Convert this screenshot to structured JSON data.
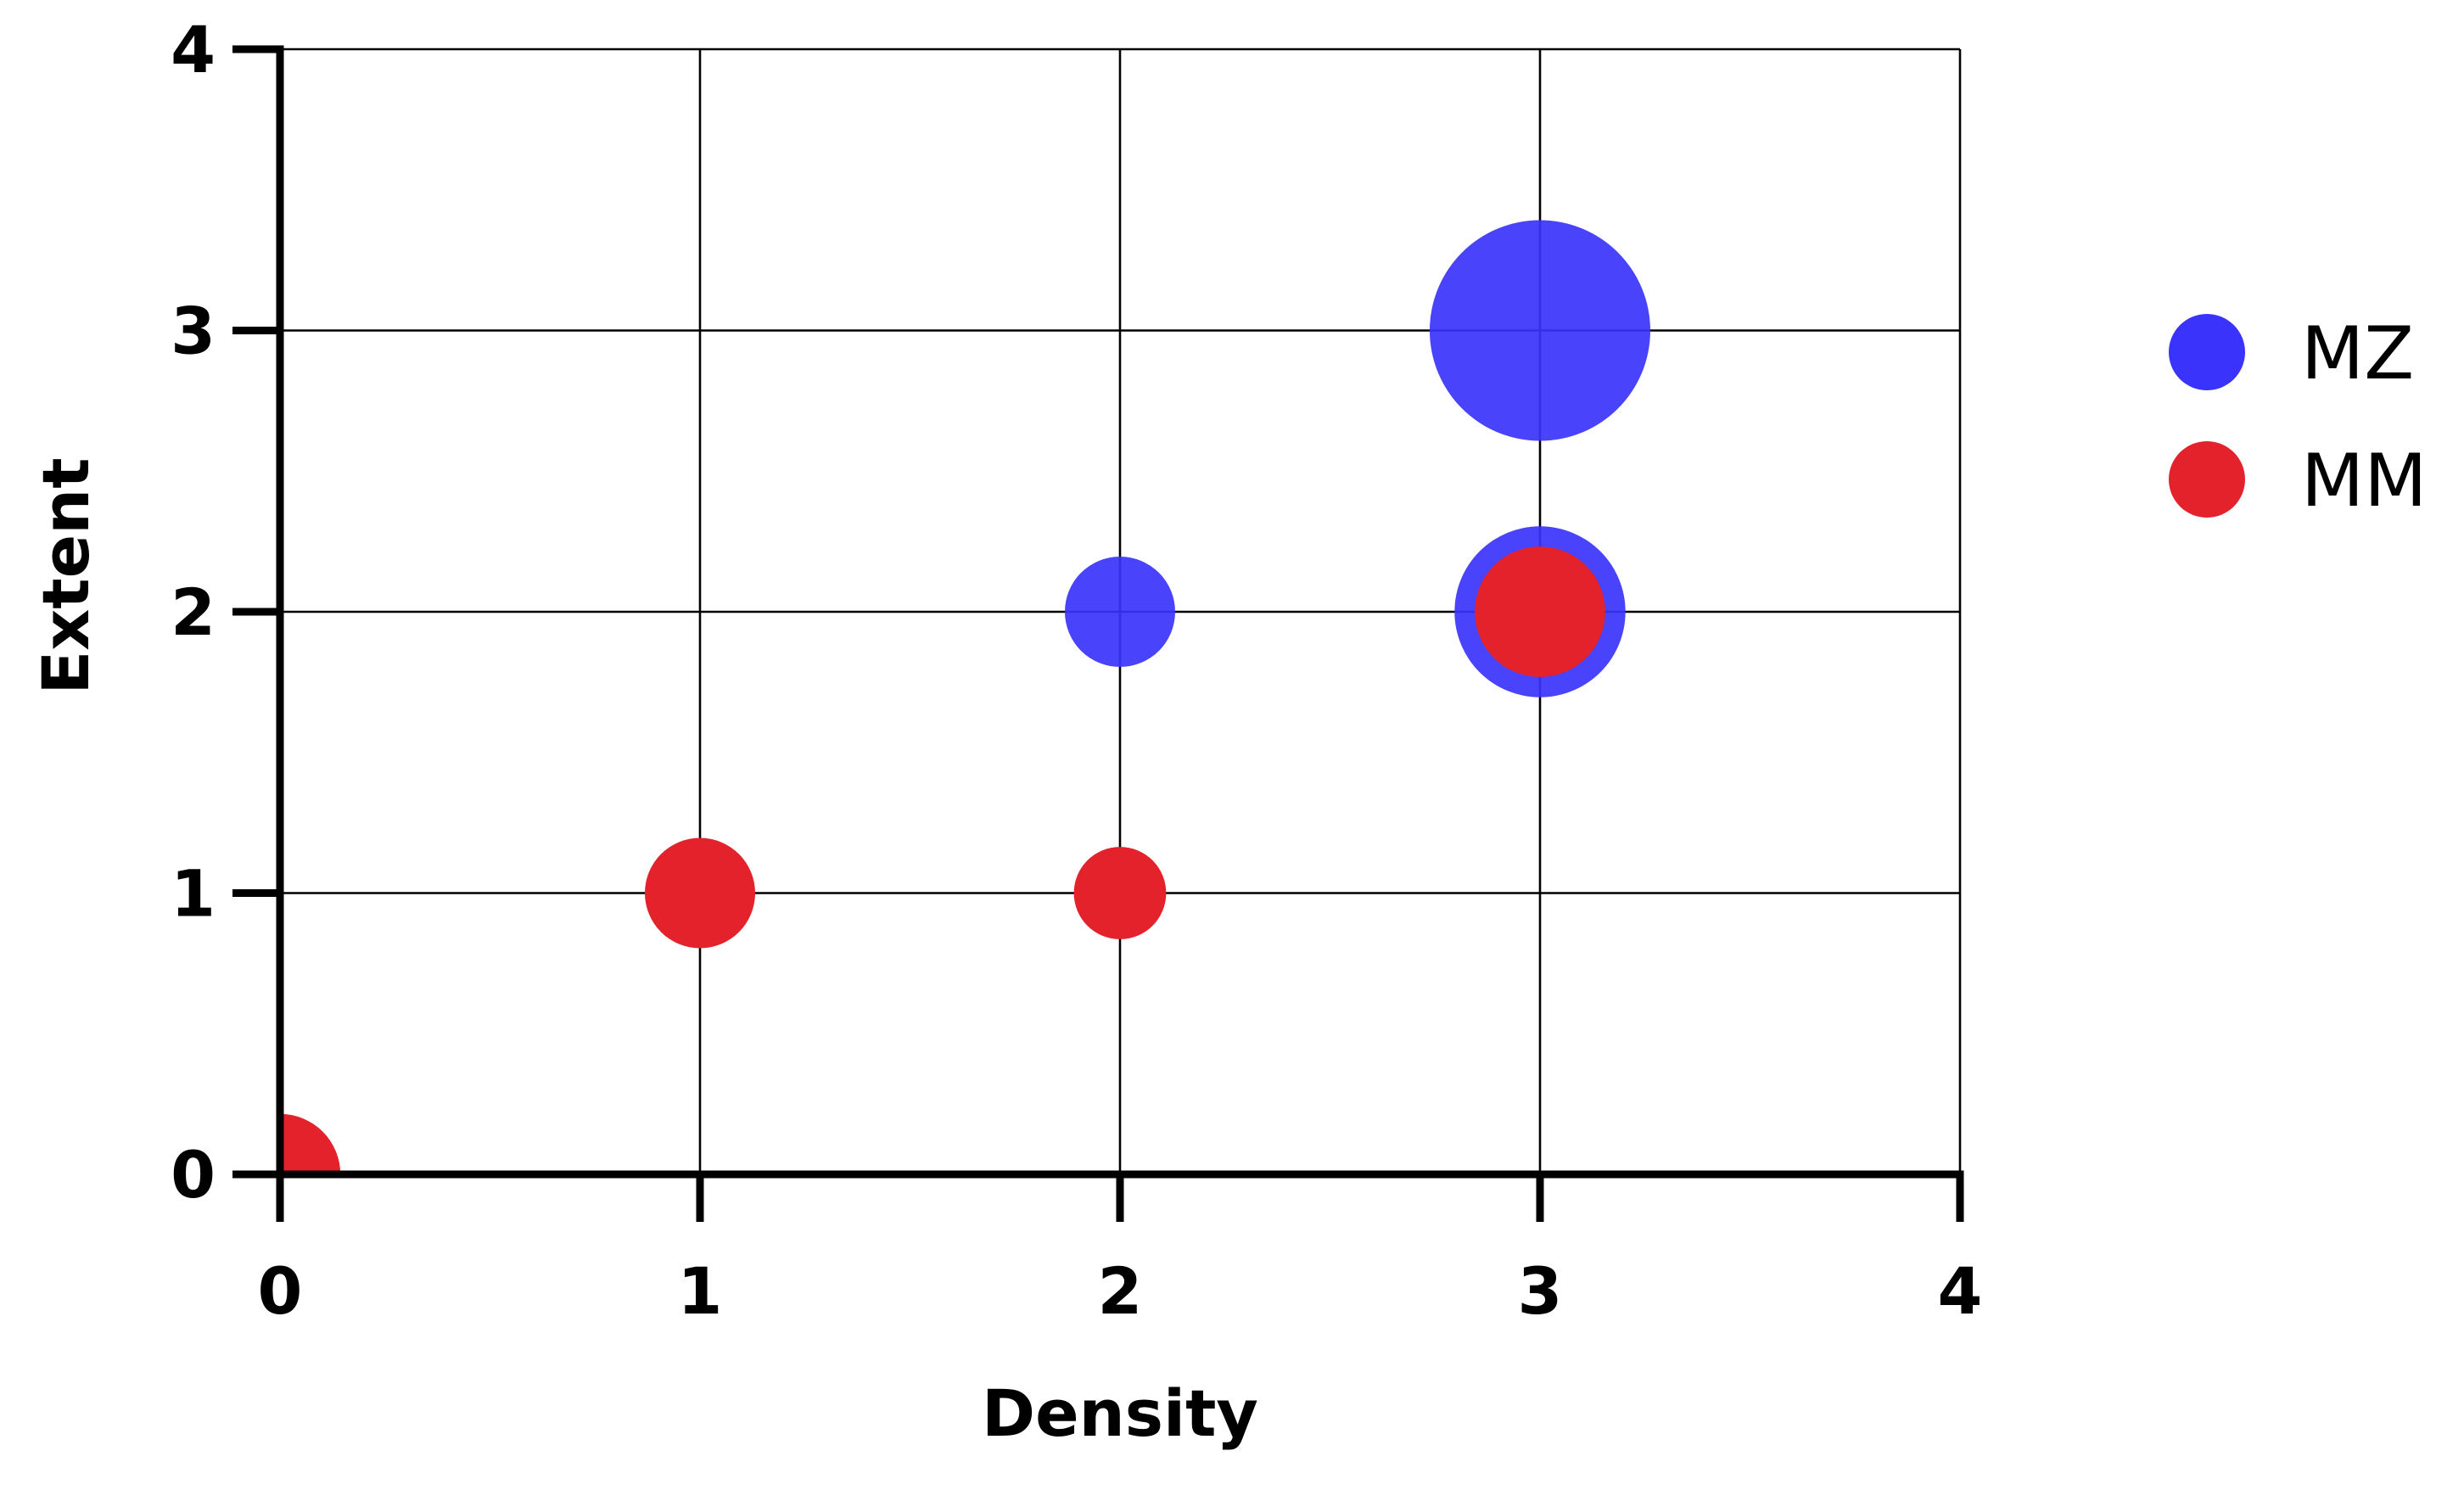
{
  "chart_data": {
    "type": "scatter",
    "xlabel": "Density",
    "ylabel": "Extent",
    "xlim": [
      0,
      4
    ],
    "ylim": [
      0,
      4
    ],
    "x_ticks": [
      "0",
      "1",
      "2",
      "3",
      "4"
    ],
    "y_ticks": [
      "0",
      "1",
      "2",
      "3",
      "4"
    ],
    "grid": true,
    "legend_position": "right",
    "series": [
      {
        "name": "MZ",
        "color": "#3a33fb",
        "points": [
          {
            "x": 3,
            "y": 3,
            "size": 4
          },
          {
            "x": 3,
            "y": 2,
            "size": 2.4
          },
          {
            "x": 2,
            "y": 2,
            "size": 1
          }
        ]
      },
      {
        "name": "MM",
        "color": "#e3222b",
        "points": [
          {
            "x": 3,
            "y": 2,
            "size": 1.4
          },
          {
            "x": 1,
            "y": 1,
            "size": 1
          },
          {
            "x": 2,
            "y": 1,
            "size": 0.7
          },
          {
            "x": 0,
            "y": 0,
            "size": 1.2
          }
        ]
      }
    ]
  }
}
